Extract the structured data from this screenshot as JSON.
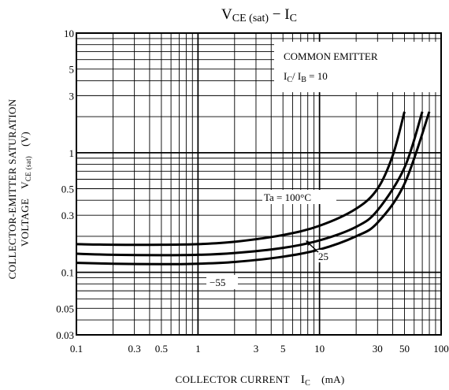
{
  "chart_data": {
    "type": "line",
    "title": {
      "main": "V",
      "main_sub": "CE (sat)",
      "dash": "  −  ",
      "main2": "I",
      "main2_sub": "C"
    },
    "x_axis": {
      "scale": "log",
      "range": [
        0.1,
        100
      ],
      "tick_labels": [
        "0.1",
        "0.3",
        "0.5",
        "1",
        "3",
        "5",
        "10",
        "30",
        "50",
        "100"
      ],
      "tick_values": [
        0.1,
        0.3,
        0.5,
        1,
        3,
        5,
        10,
        30,
        50,
        100
      ],
      "label": "COLLECTOR CURRENT",
      "label_symbol": "I",
      "label_symbol_sub": "C",
      "label_unit": "(mA)"
    },
    "y_axis": {
      "scale": "log",
      "range": [
        0.03,
        10
      ],
      "tick_labels": [
        "10",
        "5",
        "3",
        "1",
        "0.5",
        "0.3",
        "0.1",
        "0.05",
        "0.03"
      ],
      "tick_values": [
        10,
        5,
        3,
        1,
        0.5,
        0.3,
        0.1,
        0.05,
        0.03
      ],
      "label_line1": "COLLECTOR-EMITTER SATURATION",
      "label_line2": "VOLTAGE",
      "label_symbol": "V",
      "label_symbol_sub": "CE (sat)",
      "label_unit": "(V)"
    },
    "grid": true,
    "legend_box": {
      "line1": "COMMON EMITTER",
      "line2_sym": "I",
      "line2_sub": "C",
      "line2_mid": "/ I",
      "line2_sub2": "B",
      "line2_end": " = 10"
    },
    "series": [
      {
        "name": "Ta = 100°C",
        "x": [
          0.1,
          0.2,
          0.5,
          1,
          2,
          5,
          10,
          20,
          30,
          40,
          50
        ],
        "y": [
          0.172,
          0.17,
          0.17,
          0.172,
          0.18,
          0.205,
          0.245,
          0.34,
          0.5,
          0.95,
          2.2
        ]
      },
      {
        "name": "25",
        "x": [
          0.1,
          0.2,
          0.5,
          1,
          2,
          5,
          10,
          20,
          30,
          50,
          70
        ],
        "y": [
          0.143,
          0.14,
          0.139,
          0.14,
          0.145,
          0.16,
          0.185,
          0.24,
          0.33,
          0.75,
          2.2
        ]
      },
      {
        "name": "−55",
        "x": [
          0.1,
          0.2,
          0.5,
          1,
          2,
          5,
          10,
          20,
          30,
          50,
          80
        ],
        "y": [
          0.12,
          0.118,
          0.117,
          0.118,
          0.122,
          0.135,
          0.155,
          0.2,
          0.26,
          0.55,
          2.2
        ]
      }
    ],
    "annotations": {
      "ta_label": "Ta = 100°C",
      "label_25": "25",
      "label_m55": "−55"
    }
  }
}
